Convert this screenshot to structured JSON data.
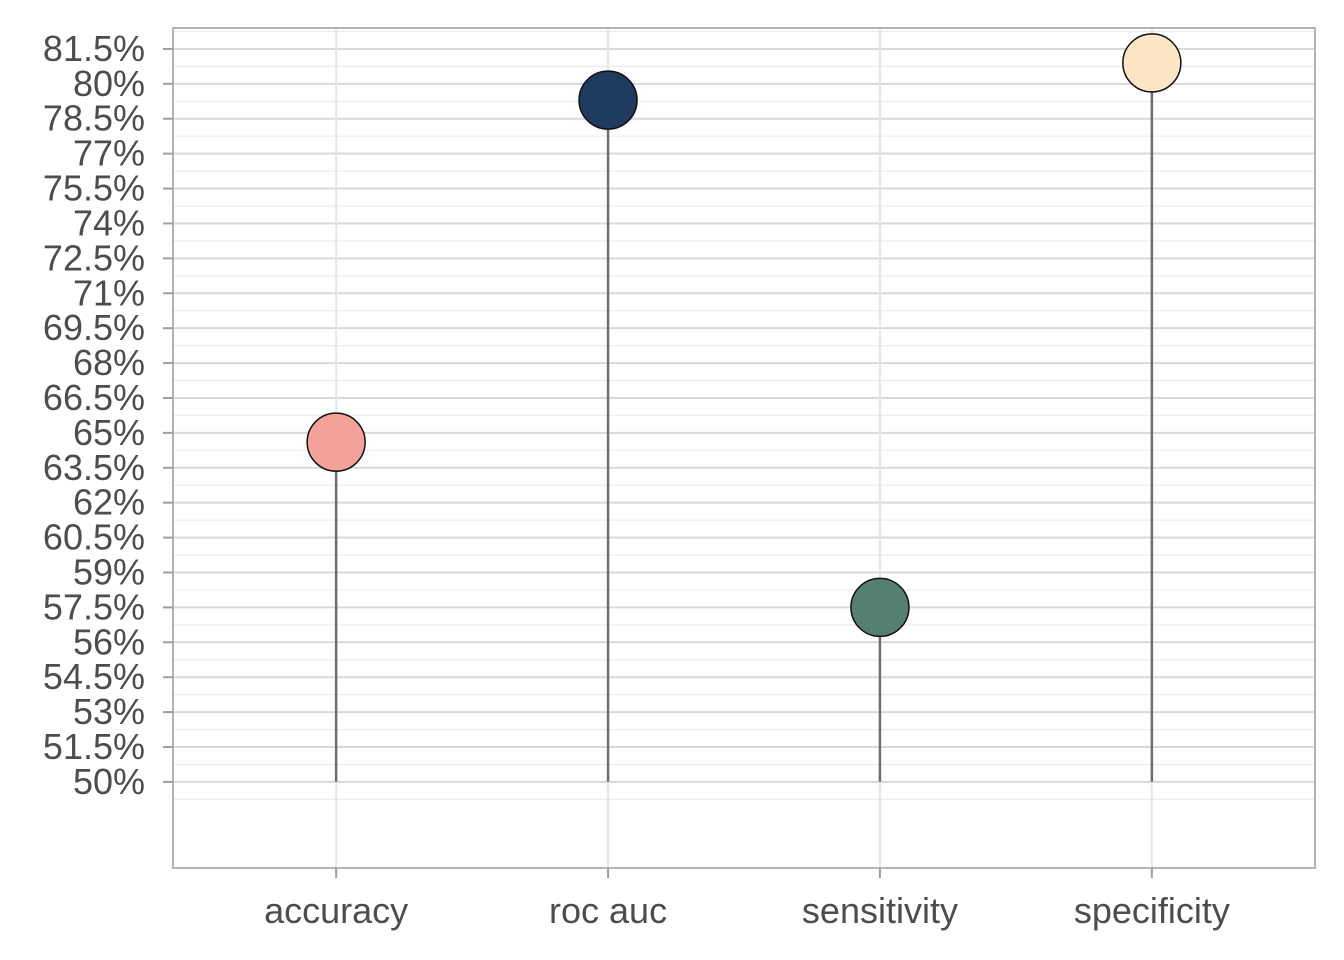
{
  "chart_data": {
    "type": "lollipop",
    "title": "",
    "xlabel": "",
    "ylabel": "",
    "categories": [
      "accuracy",
      "roc auc",
      "sensitivity",
      "specificity"
    ],
    "values": [
      64.6,
      79.3,
      57.5,
      80.9
    ],
    "baseline": 50,
    "colors": [
      "#F5A39A",
      "#1F3A5F",
      "#557F72",
      "#FDE6C6"
    ],
    "ylim": [
      46.3,
      82.4
    ],
    "y_ticks": [
      50,
      51.5,
      53,
      54.5,
      56,
      57.5,
      59,
      60.5,
      62,
      63.5,
      65,
      66.5,
      68,
      69.5,
      71,
      72.5,
      74,
      75.5,
      77,
      78.5,
      80,
      81.5
    ],
    "y_tick_labels": [
      "50%",
      "51.5%",
      "53%",
      "54.5%",
      "56%",
      "57.5%",
      "59%",
      "60.5%",
      "62%",
      "63.5%",
      "65%",
      "66.5%",
      "68%",
      "69.5%",
      "71%",
      "72.5%",
      "74%",
      "75.5%",
      "77%",
      "78.5%",
      "80%",
      "81.5%"
    ],
    "grid": true,
    "legend": "none"
  }
}
